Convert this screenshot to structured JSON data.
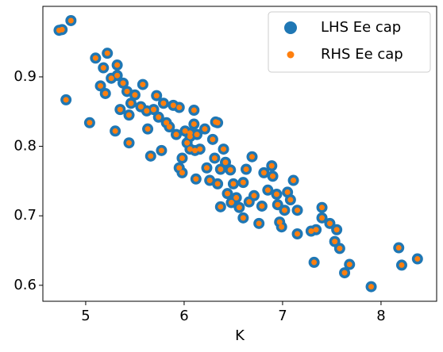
{
  "chart_data": {
    "type": "scatter",
    "xlabel": "K",
    "x": [
      4.73,
      4.76,
      4.85,
      4.8,
      5.04,
      5.1,
      5.22,
      5.15,
      5.18,
      5.2,
      5.26,
      5.32,
      5.32,
      5.38,
      5.35,
      5.3,
      5.44,
      5.42,
      5.46,
      5.44,
      5.5,
      5.58,
      5.56,
      5.62,
      5.63,
      5.66,
      5.72,
      5.69,
      5.74,
      5.77,
      5.79,
      5.82,
      5.85,
      5.89,
      5.92,
      5.95,
      5.95,
      5.98,
      6.01,
      6.03,
      6.06,
      6.1,
      6.1,
      6.13,
      6.12,
      5.98,
      6.06,
      6.16,
      6.21,
      6.23,
      6.26,
      6.29,
      6.32,
      6.31,
      6.37,
      6.4,
      6.34,
      6.34,
      6.37,
      6.42,
      6.44,
      6.47,
      6.5,
      6.48,
      6.53,
      6.56,
      6.6,
      6.63,
      6.66,
      6.69,
      6.71,
      6.76,
      6.79,
      6.81,
      6.85,
      6.89,
      6.9,
      6.94,
      6.95,
      6.97,
      6.99,
      7.02,
      7.05,
      7.08,
      7.11,
      7.15,
      7.15,
      7.29,
      7.34,
      7.32,
      7.4,
      7.4,
      7.48,
      7.55,
      7.53,
      7.58,
      7.63,
      7.68,
      7.9,
      8.18,
      8.21,
      8.37,
      6.6,
      6.11,
      6.06
    ],
    "series": [
      {
        "name": "LHS Ee cap",
        "color": "#1f77b4",
        "size": "large",
        "values": [
          0.967,
          0.968,
          0.981,
          0.867,
          0.834,
          0.927,
          0.934,
          0.887,
          0.913,
          0.876,
          0.898,
          0.917,
          0.902,
          0.891,
          0.853,
          0.822,
          0.805,
          0.879,
          0.862,
          0.845,
          0.874,
          0.889,
          0.857,
          0.851,
          0.825,
          0.786,
          0.873,
          0.853,
          0.842,
          0.794,
          0.862,
          0.834,
          0.828,
          0.859,
          0.817,
          0.856,
          0.769,
          0.783,
          0.822,
          0.805,
          0.814,
          0.852,
          0.832,
          0.817,
          0.753,
          0.762,
          0.796,
          0.796,
          0.825,
          0.769,
          0.751,
          0.81,
          0.835,
          0.783,
          0.767,
          0.796,
          0.834,
          0.746,
          0.713,
          0.777,
          0.732,
          0.766,
          0.746,
          0.719,
          0.726,
          0.712,
          0.748,
          0.767,
          0.72,
          0.785,
          0.729,
          0.689,
          0.714,
          0.762,
          0.737,
          0.772,
          0.757,
          0.731,
          0.716,
          0.691,
          0.684,
          0.708,
          0.734,
          0.723,
          0.751,
          0.708,
          0.674,
          0.678,
          0.68,
          0.633,
          0.712,
          0.697,
          0.689,
          0.68,
          0.663,
          0.653,
          0.618,
          0.63,
          0.598,
          0.654,
          0.629,
          0.638,
          0.697,
          0.794,
          0.819
        ]
      },
      {
        "name": "RHS Ee cap",
        "color": "#ff7f0e",
        "size": "small",
        "values": [
          0.967,
          0.968,
          0.981,
          0.867,
          0.834,
          0.927,
          0.934,
          0.887,
          0.913,
          0.876,
          0.898,
          0.917,
          0.902,
          0.891,
          0.853,
          0.822,
          0.805,
          0.879,
          0.862,
          0.845,
          0.874,
          0.889,
          0.857,
          0.851,
          0.825,
          0.786,
          0.873,
          0.853,
          0.842,
          0.794,
          0.862,
          0.834,
          0.828,
          0.859,
          0.817,
          0.856,
          0.769,
          0.783,
          0.822,
          0.805,
          0.814,
          0.852,
          0.832,
          0.817,
          0.753,
          0.762,
          0.796,
          0.796,
          0.825,
          0.769,
          0.751,
          0.81,
          0.835,
          0.783,
          0.767,
          0.796,
          0.834,
          0.746,
          0.713,
          0.777,
          0.732,
          0.766,
          0.746,
          0.719,
          0.726,
          0.712,
          0.748,
          0.767,
          0.72,
          0.785,
          0.729,
          0.689,
          0.714,
          0.762,
          0.737,
          0.772,
          0.757,
          0.731,
          0.716,
          0.691,
          0.684,
          0.708,
          0.734,
          0.723,
          0.751,
          0.708,
          0.674,
          0.678,
          0.68,
          0.633,
          0.712,
          0.697,
          0.689,
          0.68,
          0.663,
          0.653,
          0.618,
          0.63,
          0.598,
          0.654,
          0.629,
          0.638,
          0.697,
          0.794,
          0.819
        ]
      }
    ],
    "xlim": [
      4.565,
      8.565
    ],
    "ylim": [
      0.577,
      1.0015
    ],
    "xticks": [
      5,
      6,
      7,
      8
    ],
    "yticks": [
      0.6,
      0.7,
      0.8,
      0.9
    ],
    "grid": false,
    "legend": "upper right"
  }
}
